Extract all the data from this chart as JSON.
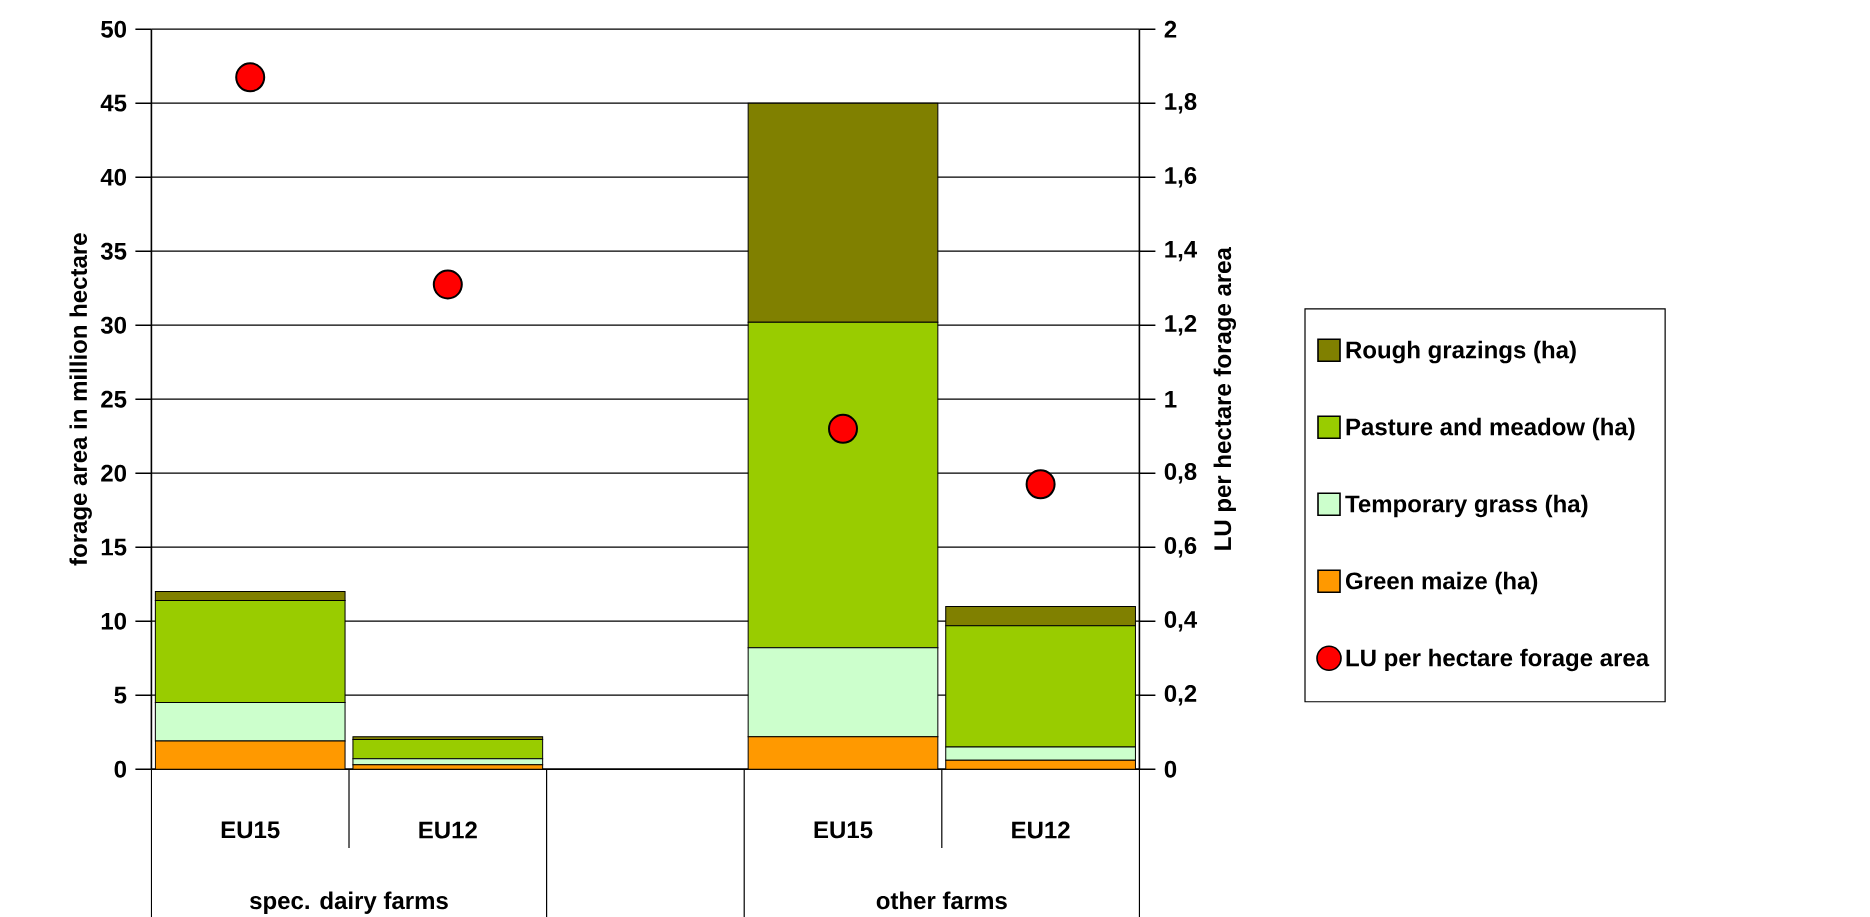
{
  "chart_data": {
    "type": "bar",
    "stacked": true,
    "categories": [
      "EU15",
      "EU12",
      null,
      "EU15",
      "EU12"
    ],
    "series": [
      {
        "name": "Green maize (ha)",
        "color": "#ff9900",
        "values": [
          1.9,
          0.3,
          null,
          2.2,
          0.6
        ]
      },
      {
        "name": "Temporary grass (ha)",
        "color": "#ccffcc",
        "values": [
          2.6,
          0.4,
          null,
          6.0,
          0.9
        ]
      },
      {
        "name": "Pasture and meadow (ha)",
        "color": "#99cc00",
        "values": [
          6.9,
          1.3,
          null,
          22.0,
          8.2
        ]
      },
      {
        "name": "Rough grazings (ha)",
        "color": "#808000",
        "values": [
          0.6,
          0.2,
          null,
          14.8,
          1.3
        ]
      },
      {
        "name": "LU per hectare forage area",
        "type": "scatter",
        "axis": "y2",
        "color": "#ff0000",
        "values": [
          1.87,
          1.31,
          null,
          0.92,
          0.77
        ]
      }
    ],
    "ylabel": "forage area in million hectare",
    "y2label": "LU per hectare forage area",
    "ylim": [
      0,
      50
    ],
    "yticks": [
      0,
      5,
      10,
      15,
      20,
      25,
      30,
      35,
      40,
      45,
      50
    ],
    "y2lim": [
      0,
      2
    ],
    "y2ticks": [
      0,
      {
        "value": 0.2,
        "label": "0,2"
      },
      {
        "value": 0.4,
        "label": "0,4"
      },
      {
        "value": 0.6,
        "label": "0,6"
      },
      {
        "value": 0.8,
        "label": "0,8"
      },
      1,
      {
        "value": 1.2,
        "label": "1,2"
      },
      {
        "value": 1.4,
        "label": "1,4"
      },
      {
        "value": 1.6,
        "label": "1,6"
      },
      {
        "value": 1.8,
        "label": "1,8"
      },
      2
    ],
    "grid": "y",
    "legend": "right",
    "marker": "circle",
    "annotations": [
      "spec. dairy farms",
      "other farms"
    ]
  }
}
